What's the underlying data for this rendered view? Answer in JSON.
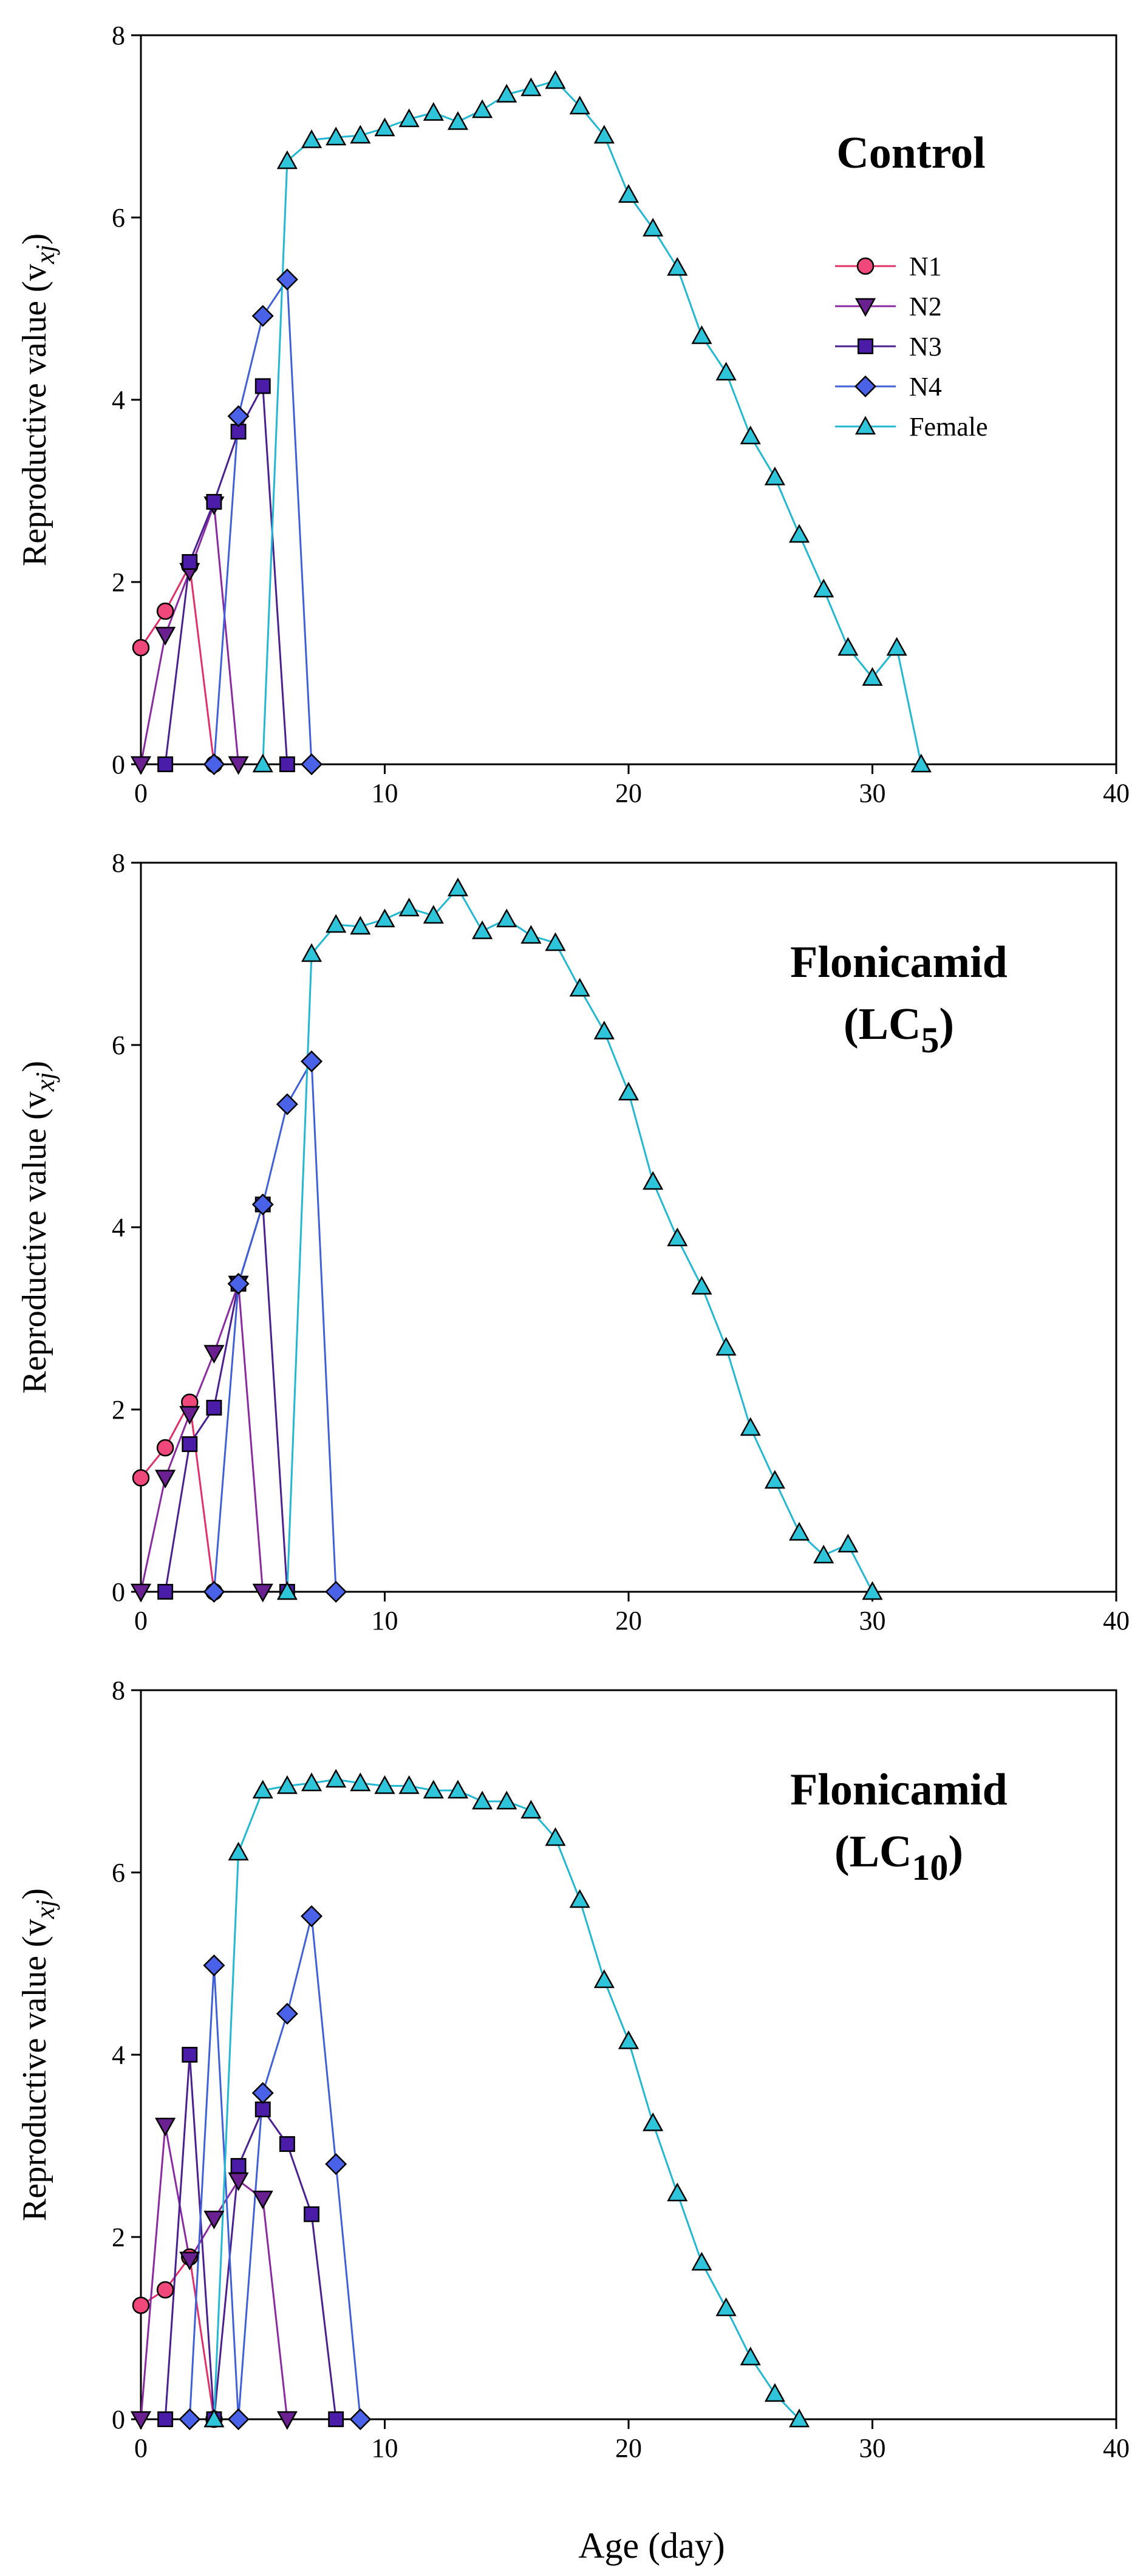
{
  "chart_data": [
    {
      "type": "line",
      "title": "Control",
      "title_lines": [
        "Control"
      ],
      "xlabel": "Age (day)",
      "ylabel": "Reproductive value (v",
      "ylabel_sub": "xj",
      "ylabel_end": ")",
      "xlim": [
        0,
        40
      ],
      "ylim": [
        0,
        8
      ],
      "xticks": [
        0,
        10,
        20,
        30,
        40
      ],
      "yticks": [
        0,
        2,
        4,
        6,
        8
      ],
      "legend_position": "right",
      "legend": [
        "N1",
        "N2",
        "N3",
        "N4",
        "Female"
      ],
      "series": [
        {
          "name": "N1",
          "x": [
            0,
            1,
            2,
            3
          ],
          "y": [
            1.28,
            1.68,
            2.18,
            0
          ]
        },
        {
          "name": "N2",
          "x": [
            0,
            1,
            2,
            3,
            4
          ],
          "y": [
            0,
            1.42,
            2.12,
            2.85,
            0
          ]
        },
        {
          "name": "N3",
          "x": [
            1,
            2,
            3,
            4,
            5,
            6
          ],
          "y": [
            0,
            2.22,
            2.88,
            3.65,
            4.15,
            0
          ]
        },
        {
          "name": "N4",
          "x": [
            3,
            4,
            5,
            6,
            7
          ],
          "y": [
            0,
            3.82,
            4.92,
            5.32,
            0
          ]
        },
        {
          "name": "Female",
          "x": [
            5,
            6,
            7,
            8,
            9,
            10,
            11,
            12,
            13,
            14,
            15,
            16,
            17,
            18,
            19,
            20,
            21,
            22,
            23,
            24,
            25,
            26,
            27,
            28,
            29,
            30,
            31,
            32
          ],
          "y": [
            0,
            6.62,
            6.85,
            6.88,
            6.9,
            6.98,
            7.08,
            7.15,
            7.05,
            7.18,
            7.35,
            7.42,
            7.5,
            7.22,
            6.9,
            6.25,
            5.88,
            5.45,
            4.7,
            4.3,
            3.6,
            3.15,
            2.52,
            1.92,
            1.28,
            0.95,
            1.28,
            0
          ]
        }
      ]
    },
    {
      "type": "line",
      "title": "Flonicamid (LC5)",
      "title_lines": [
        "Flonicamid",
        "(LC",
        "5",
        ")"
      ],
      "xlabel": "Age (day)",
      "ylabel": "Reproductive value (v",
      "ylabel_sub": "xj",
      "ylabel_end": ")",
      "xlim": [
        0,
        40
      ],
      "ylim": [
        0,
        8
      ],
      "xticks": [
        0,
        10,
        20,
        30,
        40
      ],
      "yticks": [
        0,
        2,
        4,
        6,
        8
      ],
      "series": [
        {
          "name": "N1",
          "x": [
            0,
            1,
            2,
            3
          ],
          "y": [
            1.25,
            1.58,
            2.08,
            0
          ]
        },
        {
          "name": "N2",
          "x": [
            0,
            1,
            2,
            3,
            4,
            5
          ],
          "y": [
            0,
            1.25,
            1.95,
            2.62,
            3.38,
            0
          ]
        },
        {
          "name": "N3",
          "x": [
            1,
            2,
            3,
            4,
            5,
            6
          ],
          "y": [
            0,
            1.62,
            2.02,
            3.38,
            4.25,
            0
          ]
        },
        {
          "name": "N4",
          "x": [
            3,
            4,
            5,
            6,
            7,
            8
          ],
          "y": [
            0,
            3.38,
            4.25,
            5.35,
            5.82,
            0
          ]
        },
        {
          "name": "Female",
          "x": [
            6,
            7,
            8,
            9,
            10,
            11,
            12,
            13,
            14,
            15,
            16,
            17,
            18,
            19,
            20,
            21,
            22,
            23,
            24,
            25,
            26,
            27,
            28,
            29,
            30
          ],
          "y": [
            0,
            7.0,
            7.32,
            7.3,
            7.38,
            7.5,
            7.42,
            7.72,
            7.25,
            7.38,
            7.2,
            7.12,
            6.62,
            6.15,
            5.48,
            4.5,
            3.88,
            3.35,
            2.68,
            1.8,
            1.22,
            0.65,
            0.4,
            0.52,
            0
          ]
        }
      ]
    },
    {
      "type": "line",
      "title": "Flonicamid (LC10)",
      "title_lines": [
        "Flonicamid",
        "(LC",
        "10",
        ")"
      ],
      "xlabel": "Age (day)",
      "ylabel": "Reproductive value (v",
      "ylabel_sub": "xj",
      "ylabel_end": ")",
      "xlim": [
        0,
        40
      ],
      "ylim": [
        0,
        8
      ],
      "xticks": [
        0,
        10,
        20,
        30,
        40
      ],
      "yticks": [
        0,
        2,
        4,
        6,
        8
      ],
      "series": [
        {
          "name": "N1",
          "x": [
            0,
            1,
            2,
            3
          ],
          "y": [
            1.25,
            1.42,
            1.78,
            0
          ]
        },
        {
          "name": "N2",
          "x": [
            0,
            1,
            2,
            3,
            4,
            5,
            6
          ],
          "y": [
            0,
            3.22,
            1.75,
            2.2,
            2.62,
            2.42,
            0
          ]
        },
        {
          "name": "N3",
          "x": [
            1,
            2,
            3,
            4,
            5,
            6,
            7,
            8
          ],
          "y": [
            0,
            4.0,
            0,
            2.78,
            3.4,
            3.02,
            2.25,
            0
          ]
        },
        {
          "name": "N4",
          "x": [
            2,
            3,
            4,
            5,
            6,
            7,
            8,
            9
          ],
          "y": [
            0,
            4.98,
            0,
            3.58,
            4.45,
            5.52,
            2.8,
            0
          ]
        },
        {
          "name": "Female",
          "x": [
            3,
            4,
            5,
            6,
            7,
            8,
            9,
            10,
            11,
            12,
            13,
            14,
            15,
            16,
            17,
            18,
            19,
            20,
            21,
            22,
            23,
            24,
            25,
            26,
            27
          ],
          "y": [
            0,
            6.22,
            6.9,
            6.95,
            6.98,
            7.02,
            6.98,
            6.95,
            6.95,
            6.9,
            6.9,
            6.78,
            6.78,
            6.68,
            6.38,
            5.7,
            4.82,
            4.15,
            3.25,
            2.48,
            1.72,
            1.22,
            0.68,
            0.28,
            0
          ]
        }
      ]
    }
  ],
  "series_styles": [
    {
      "name": "N1",
      "marker": "circle",
      "fill": "#F0487A",
      "line": "#E0306A"
    },
    {
      "name": "N2",
      "marker": "triangle-down",
      "fill": "#6A2090",
      "line": "#8A2AA0"
    },
    {
      "name": "N3",
      "marker": "square",
      "fill": "#4A1CA8",
      "line": "#4A2090"
    },
    {
      "name": "N4",
      "marker": "diamond",
      "fill": "#4A62E8",
      "line": "#4060D8"
    },
    {
      "name": "Female",
      "marker": "triangle-up",
      "fill": "#2EC4DA",
      "line": "#22B8D2"
    }
  ]
}
